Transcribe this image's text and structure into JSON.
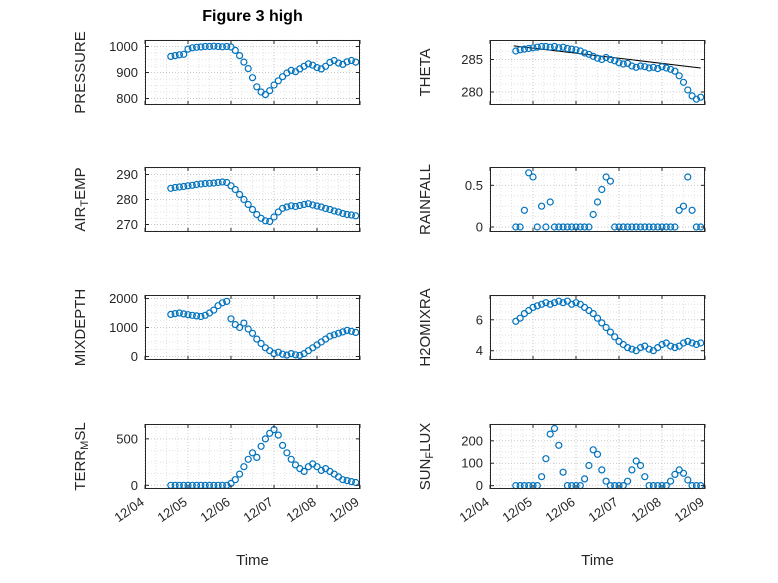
{
  "title": "Figure 3 high",
  "xlabel": "Time",
  "accent_color": "#0072BD",
  "axis_color": "#262626",
  "grid_color": "#c9c9c9",
  "minor_grid_color": "#e2e2e2",
  "xlim": [
    0,
    5
  ],
  "x_ticks": [
    0,
    1,
    2,
    3,
    4,
    5
  ],
  "x_tick_labels": [
    "12/04",
    "12/05",
    "12/06",
    "12/07",
    "12/08",
    "12/09"
  ],
  "x_days": [
    0.6,
    0.7,
    0.8,
    0.9,
    1.0,
    1.1,
    1.2,
    1.3,
    1.4,
    1.5,
    1.6,
    1.7,
    1.8,
    1.9,
    2.0,
    2.1,
    2.2,
    2.3,
    2.4,
    2.5,
    2.6,
    2.7,
    2.8,
    2.9,
    3.0,
    3.1,
    3.2,
    3.3,
    3.4,
    3.5,
    3.6,
    3.7,
    3.8,
    3.9,
    4.0,
    4.1,
    4.2,
    4.3,
    4.4,
    4.5,
    4.6,
    4.7,
    4.8,
    4.9
  ],
  "chart_data": [
    {
      "name": "pressure",
      "type": "scatter",
      "ylabel": "PRESSURE",
      "ylabel_parts": [
        {
          "t": "PRESSURE",
          "sub": false
        }
      ],
      "ylim": [
        775,
        1025
      ],
      "yticks": [
        800,
        900,
        1000
      ],
      "ytick_labels": [
        "800",
        "900",
        "1000"
      ],
      "show_xticklabels": false,
      "y": [
        962,
        965,
        968,
        970,
        990,
        995,
        997,
        998,
        1000,
        1000,
        1001,
        1000,
        999,
        1000,
        998,
        985,
        965,
        940,
        915,
        880,
        845,
        825,
        815,
        830,
        852,
        868,
        884,
        898,
        908,
        903,
        914,
        924,
        933,
        928,
        919,
        914,
        924,
        939,
        946,
        936,
        931,
        941,
        946,
        940
      ]
    },
    {
      "name": "theta",
      "type": "scatter",
      "ylabel": "THETA",
      "ylabel_parts": [
        {
          "t": "THETA",
          "sub": false
        }
      ],
      "ylim": [
        278,
        288
      ],
      "yticks": [
        280,
        285
      ],
      "ytick_labels": [
        "280",
        "285"
      ],
      "show_xticklabels": false,
      "line": {
        "x": [
          0.55,
          4.9
        ],
        "y": [
          287.1,
          283.7
        ],
        "color": "#000000"
      },
      "y": [
        286.3,
        286.5,
        286.6,
        286.7,
        286.8,
        286.9,
        287.0,
        287.0,
        286.9,
        287.0,
        286.8,
        286.9,
        286.7,
        286.6,
        286.5,
        286.3,
        286.0,
        285.8,
        285.5,
        285.2,
        285.0,
        285.3,
        285.0,
        284.8,
        284.5,
        284.3,
        284.4,
        284.0,
        283.8,
        284.0,
        283.9,
        283.7,
        283.8,
        283.6,
        283.9,
        283.7,
        283.5,
        283.2,
        282.5,
        281.5,
        280.3,
        279.4,
        278.9,
        279.2
      ]
    },
    {
      "name": "air-temp",
      "type": "scatter",
      "ylabel": "AIR_TEMP",
      "ylabel_parts": [
        {
          "t": "AIR",
          "sub": false
        },
        {
          "t": "T",
          "sub": true
        },
        {
          "t": "EMP",
          "sub": false
        }
      ],
      "ylim": [
        267,
        293
      ],
      "yticks": [
        270,
        280,
        290
      ],
      "ytick_labels": [
        "270",
        "280",
        "290"
      ],
      "show_xticklabels": false,
      "y": [
        284.5,
        284.8,
        285.0,
        285.2,
        285.5,
        285.7,
        286.0,
        286.2,
        286.4,
        286.5,
        286.6,
        286.8,
        287.0,
        286.8,
        285.5,
        284.0,
        282.0,
        280.0,
        278.0,
        276.0,
        274.0,
        272.5,
        271.5,
        271.2,
        273.0,
        275.0,
        276.5,
        277.0,
        277.5,
        277.2,
        277.6,
        278.0,
        278.3,
        277.8,
        277.4,
        277.0,
        276.4,
        276.0,
        275.4,
        275.0,
        274.4,
        274.0,
        273.8,
        273.5
      ]
    },
    {
      "name": "rainfall",
      "type": "scatter",
      "ylabel": "RAINFALL",
      "ylabel_parts": [
        {
          "t": "RAINFALL",
          "sub": false
        }
      ],
      "ylim": [
        -0.06,
        0.72
      ],
      "yticks": [
        0,
        0.5
      ],
      "ytick_labels": [
        "0",
        "0.5"
      ],
      "show_xticklabels": false,
      "y": [
        0,
        0,
        0.2,
        0.65,
        0.6,
        0,
        0.25,
        0,
        0.3,
        0,
        0,
        0,
        0,
        0,
        0,
        0,
        0,
        0,
        0.15,
        0.3,
        0.45,
        0.6,
        0.55,
        0,
        0,
        0,
        0,
        0,
        0,
        0,
        0,
        0,
        0,
        0,
        0,
        0,
        0,
        0,
        0.2,
        0.25,
        0.6,
        0.2,
        0,
        0
      ]
    },
    {
      "name": "mixdepth",
      "type": "scatter",
      "ylabel": "MIXDEPTH",
      "ylabel_parts": [
        {
          "t": "MIXDEPTH",
          "sub": false
        }
      ],
      "ylim": [
        -120,
        2120
      ],
      "yticks": [
        0,
        1000,
        2000
      ],
      "ytick_labels": [
        "0",
        "1000",
        "2000"
      ],
      "show_xticklabels": false,
      "y": [
        1450,
        1480,
        1500,
        1470,
        1440,
        1420,
        1400,
        1380,
        1420,
        1500,
        1600,
        1750,
        1850,
        1900,
        1300,
        1100,
        1000,
        1150,
        950,
        800,
        600,
        450,
        300,
        200,
        100,
        150,
        80,
        50,
        100,
        60,
        40,
        100,
        200,
        300,
        400,
        500,
        600,
        700,
        750,
        800,
        850,
        900,
        870,
        830
      ]
    },
    {
      "name": "h2omixra",
      "type": "scatter",
      "ylabel": "H2OMIXRA",
      "ylabel_parts": [
        {
          "t": "H2OMIXRA",
          "sub": false
        }
      ],
      "ylim": [
        3.4,
        7.6
      ],
      "yticks": [
        4,
        6
      ],
      "ytick_labels": [
        "4",
        "6"
      ],
      "show_xticklabels": false,
      "y": [
        5.9,
        6.1,
        6.4,
        6.6,
        6.8,
        6.9,
        7.0,
        7.1,
        7.0,
        7.1,
        7.2,
        7.1,
        7.2,
        7.0,
        7.1,
        7.0,
        6.8,
        6.6,
        6.4,
        6.1,
        5.8,
        5.5,
        5.2,
        4.9,
        4.6,
        4.4,
        4.2,
        4.1,
        4.0,
        4.2,
        4.3,
        4.1,
        4.0,
        4.2,
        4.4,
        4.5,
        4.3,
        4.2,
        4.3,
        4.5,
        4.6,
        4.5,
        4.4,
        4.5
      ]
    },
    {
      "name": "terr-msl",
      "type": "scatter",
      "ylabel": "TERR_MSL",
      "ylabel_parts": [
        {
          "t": "TERR",
          "sub": false
        },
        {
          "t": "M",
          "sub": true
        },
        {
          "t": "SL",
          "sub": false
        }
      ],
      "ylim": [
        -40,
        660
      ],
      "yticks": [
        0,
        500
      ],
      "ytick_labels": [
        "0",
        "500"
      ],
      "show_xticklabels": true,
      "y": [
        0,
        0,
        0,
        0,
        0,
        0,
        0,
        0,
        0,
        0,
        0,
        0,
        0,
        0,
        20,
        60,
        120,
        200,
        280,
        350,
        300,
        420,
        500,
        560,
        600,
        540,
        430,
        350,
        280,
        220,
        180,
        150,
        200,
        230,
        200,
        160,
        180,
        150,
        120,
        90,
        60,
        50,
        40,
        30
      ]
    },
    {
      "name": "sun-flux",
      "type": "scatter",
      "ylabel": "SUN_FLUX",
      "ylabel_parts": [
        {
          "t": "SUN",
          "sub": false
        },
        {
          "t": "F",
          "sub": true
        },
        {
          "t": "LUX",
          "sub": false
        }
      ],
      "ylim": [
        -15,
        275
      ],
      "yticks": [
        0,
        100,
        200
      ],
      "ytick_labels": [
        "0",
        "100",
        "200"
      ],
      "show_xticklabels": true,
      "y": [
        0,
        0,
        0,
        0,
        0,
        0,
        40,
        120,
        230,
        255,
        180,
        60,
        0,
        0,
        0,
        0,
        30,
        90,
        160,
        140,
        70,
        20,
        0,
        0,
        0,
        0,
        20,
        70,
        110,
        90,
        40,
        0,
        0,
        0,
        0,
        0,
        20,
        50,
        70,
        55,
        25,
        0,
        0,
        0
      ]
    }
  ]
}
